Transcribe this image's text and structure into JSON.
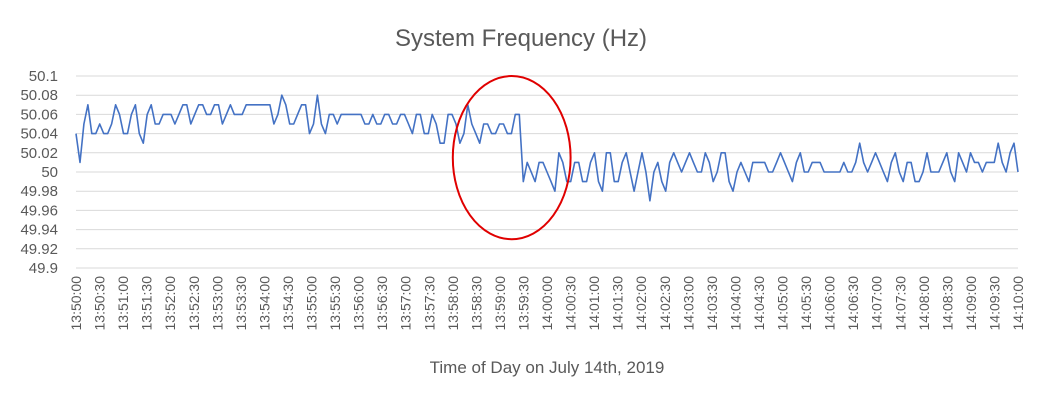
{
  "chart_data": {
    "type": "line",
    "title": "System Frequency (Hz)",
    "xlabel": "Time of Day on July 14th, 2019",
    "ylabel": "",
    "ylim": [
      49.9,
      50.1
    ],
    "yticks": [
      "49.9",
      "49.92",
      "49.94",
      "49.96",
      "49.98",
      "50",
      "50.02",
      "50.04",
      "50.06",
      "50.08",
      "50.1"
    ],
    "xticks": [
      "13:50:00",
      "13:50:30",
      "13:51:00",
      "13:51:30",
      "13:52:00",
      "13:52:30",
      "13:53:00",
      "13:53:30",
      "13:54:00",
      "13:54:30",
      "13:55:00",
      "13:55:30",
      "13:56:00",
      "13:56:30",
      "13:57:00",
      "13:57:30",
      "13:58:00",
      "13:58:30",
      "13:59:00",
      "13:59:30",
      "14:00:00",
      "14:00:30",
      "14:01:00",
      "14:01:30",
      "14:02:00",
      "14:02:30",
      "14:03:00",
      "14:03:30",
      "14:04:00",
      "14:04:30",
      "14:05:00",
      "14:05:30",
      "14:06:00",
      "14:06:30",
      "14:07:00",
      "14:07:30",
      "14:08:00",
      "14:08:30",
      "14:09:00",
      "14:09:30",
      "14:10:00"
    ],
    "grid": true,
    "annotation": {
      "type": "ellipse",
      "color": "#e00000",
      "x_range": [
        "13:58:00",
        "14:00:30"
      ],
      "y_range": [
        49.93,
        50.1
      ]
    },
    "series": [
      {
        "color": "#4472c4",
        "values": [
          50.04,
          50.01,
          50.05,
          50.07,
          50.04,
          50.04,
          50.05,
          50.04,
          50.04,
          50.05,
          50.07,
          50.06,
          50.04,
          50.04,
          50.06,
          50.07,
          50.04,
          50.03,
          50.06,
          50.07,
          50.05,
          50.05,
          50.06,
          50.06,
          50.06,
          50.05,
          50.06,
          50.07,
          50.07,
          50.05,
          50.06,
          50.07,
          50.07,
          50.06,
          50.06,
          50.07,
          50.07,
          50.05,
          50.06,
          50.07,
          50.06,
          50.06,
          50.06,
          50.07,
          50.07,
          50.07,
          50.07,
          50.07,
          50.07,
          50.07,
          50.05,
          50.06,
          50.08,
          50.07,
          50.05,
          50.05,
          50.06,
          50.07,
          50.07,
          50.04,
          50.05,
          50.08,
          50.05,
          50.04,
          50.06,
          50.06,
          50.05,
          50.06,
          50.06,
          50.06,
          50.06,
          50.06,
          50.06,
          50.05,
          50.05,
          50.06,
          50.05,
          50.05,
          50.06,
          50.06,
          50.05,
          50.05,
          50.06,
          50.06,
          50.05,
          50.04,
          50.06,
          50.06,
          50.04,
          50.04,
          50.06,
          50.05,
          50.03,
          50.03,
          50.06,
          50.06,
          50.05,
          50.03,
          50.04,
          50.07,
          50.05,
          50.04,
          50.03,
          50.05,
          50.05,
          50.04,
          50.04,
          50.05,
          50.05,
          50.04,
          50.04,
          50.06,
          50.06,
          49.99,
          50.01,
          50.0,
          49.99,
          50.01,
          50.01,
          50.0,
          49.99,
          49.98,
          50.02,
          50.01,
          49.99,
          49.99,
          50.01,
          50.01,
          49.99,
          49.99,
          50.01,
          50.02,
          49.99,
          49.98,
          50.02,
          50.02,
          49.99,
          49.99,
          50.01,
          50.02,
          50.0,
          49.98,
          50.0,
          50.02,
          50.0,
          49.97,
          50.0,
          50.01,
          49.99,
          49.98,
          50.01,
          50.02,
          50.01,
          50.0,
          50.01,
          50.02,
          50.01,
          50.0,
          50.0,
          50.02,
          50.01,
          49.99,
          50.0,
          50.02,
          50.02,
          49.99,
          49.98,
          50.0,
          50.01,
          50.0,
          49.99,
          50.01,
          50.01,
          50.01,
          50.01,
          50.0,
          50.0,
          50.01,
          50.02,
          50.01,
          50.0,
          49.99,
          50.01,
          50.02,
          50.0,
          50.0,
          50.01,
          50.01,
          50.01,
          50.0,
          50.0,
          50.0,
          50.0,
          50.0,
          50.01,
          50.0,
          50.0,
          50.01,
          50.03,
          50.01,
          50.0,
          50.01,
          50.02,
          50.01,
          50.0,
          49.99,
          50.01,
          50.02,
          50.0,
          49.99,
          50.01,
          50.01,
          49.99,
          49.99,
          50.0,
          50.02,
          50.0,
          50.0,
          50.0,
          50.01,
          50.02,
          50.0,
          49.99,
          50.02,
          50.01,
          50.0,
          50.02,
          50.01,
          50.01,
          50.0,
          50.01,
          50.01,
          50.01,
          50.03,
          50.01,
          50.0,
          50.02,
          50.03,
          50.0
        ]
      }
    ]
  }
}
